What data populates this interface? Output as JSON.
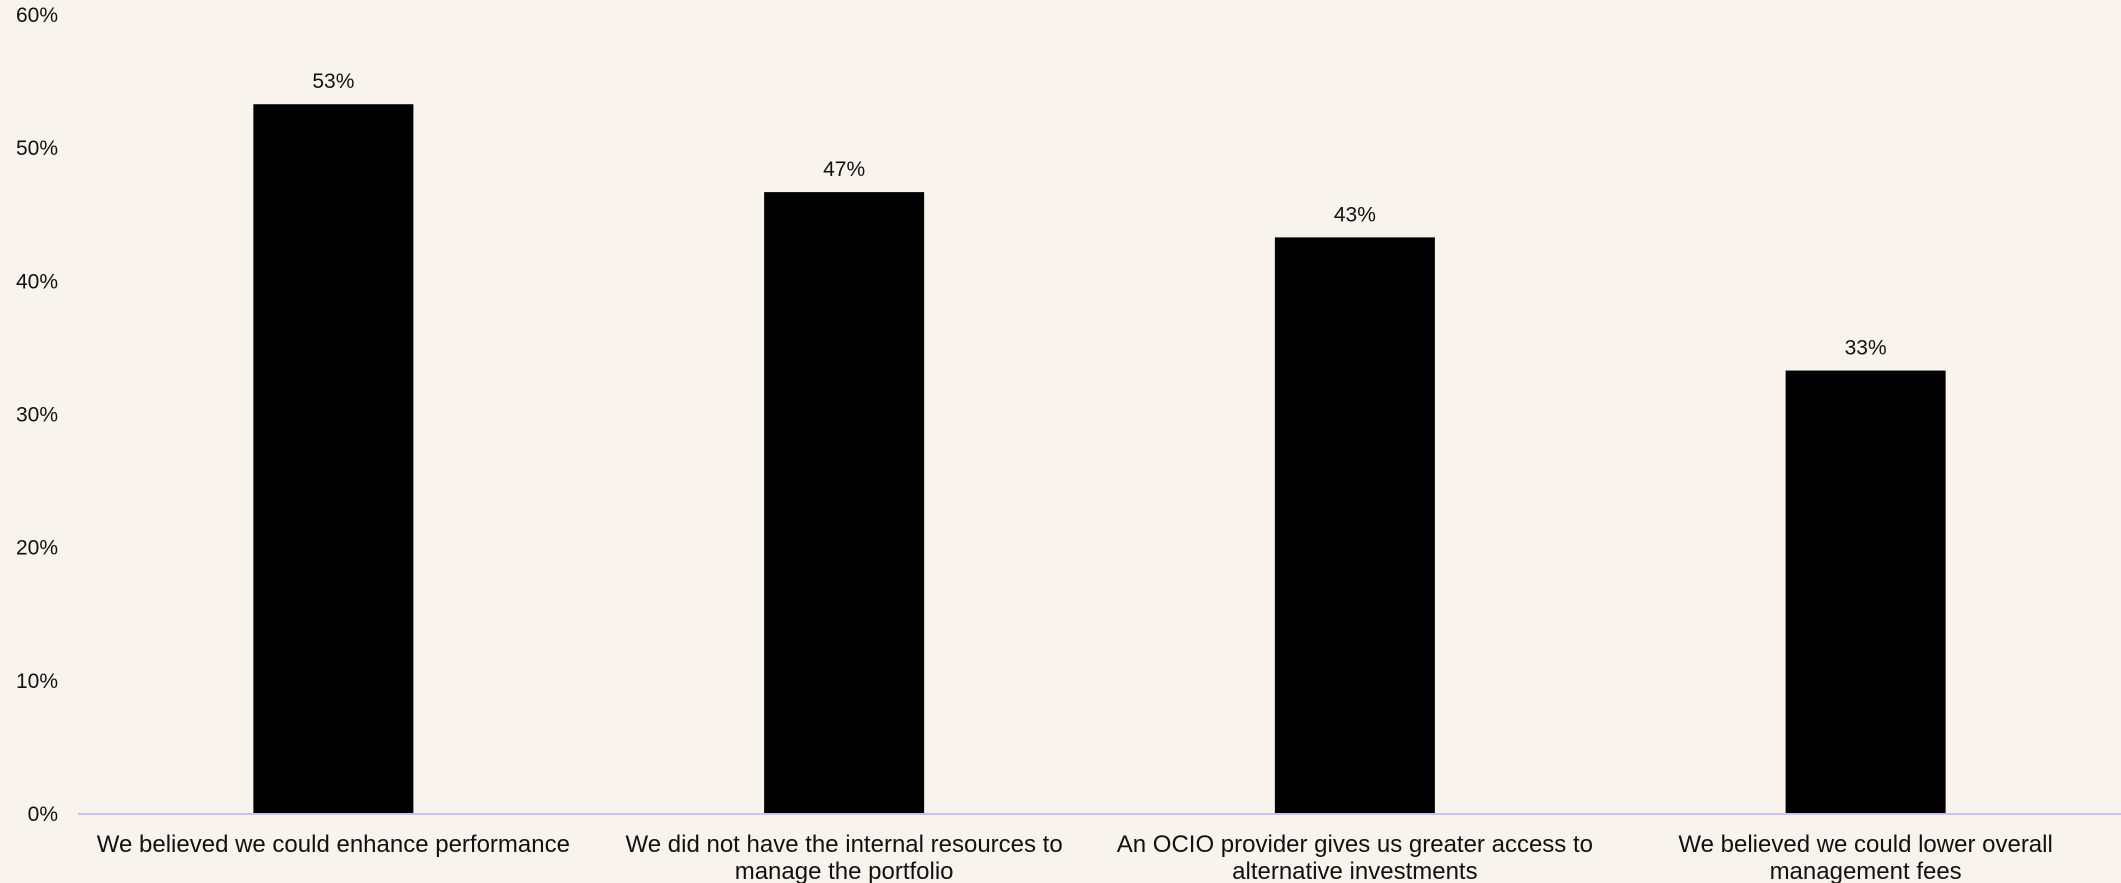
{
  "chart_data": {
    "type": "bar",
    "title": "",
    "xlabel": "",
    "ylabel": "",
    "ylim": [
      0,
      60
    ],
    "y_ticks": [
      0,
      10,
      20,
      30,
      40,
      50,
      60
    ],
    "y_tick_labels": [
      "0%",
      "10%",
      "20%",
      "30%",
      "40%",
      "50%",
      "60%"
    ],
    "categories": [
      [
        "We believed we could enhance performance"
      ],
      [
        "We did not have the internal resources to",
        "manage the portfolio"
      ],
      [
        "An OCIO provider gives us greater access to",
        "alternative investments"
      ],
      [
        "We believed we could lower overall",
        "management fees"
      ]
    ],
    "values": [
      53.3,
      46.7,
      43.3,
      33.3
    ],
    "data_labels": [
      "53%",
      "47%",
      "43%",
      "33%"
    ],
    "grid": false,
    "legend": "none",
    "colors": {
      "bar": "#000000",
      "background": "#f8f3ed",
      "axis": "#c9c3e6",
      "text": "#111111"
    }
  }
}
